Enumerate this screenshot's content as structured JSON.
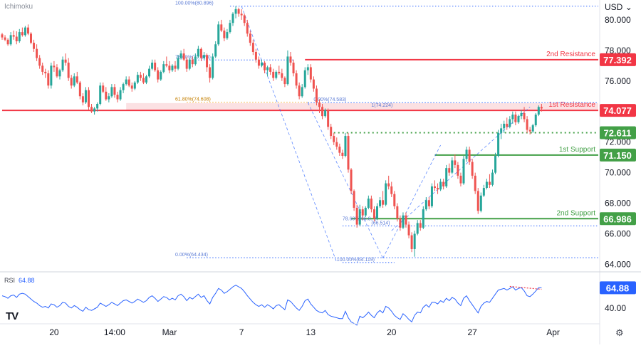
{
  "header": {
    "indicator_name": "Ichimoku",
    "currency": "USD",
    "currency_chevron": "⌄"
  },
  "rsi_panel": {
    "label": "RSI",
    "value": "64.88",
    "tick": "40.00"
  },
  "footer": {
    "logo": "TV",
    "settings_icon": "gear-icon",
    "settings_glyph": "⚙"
  },
  "colors": {
    "up": "#26a69a",
    "down": "#ef5350",
    "resistance": "#f23645",
    "support": "#43a047",
    "fib": "#2962ff",
    "rsi": "#2962ff",
    "rsi_trend": "#f23645",
    "zone": "#f7c9cc"
  },
  "chart_data": {
    "type": "candlestick",
    "y_axis": {
      "min": 63.6,
      "max": 81.3,
      "ticks": [
        80,
        78,
        76,
        74,
        72,
        70,
        68,
        66,
        64
      ],
      "tick_labels": [
        "80.000",
        "78.000",
        "76.000",
        "74.000",
        "72.000",
        "70.000",
        "68.000",
        "66.000",
        "64.000"
      ]
    },
    "x_axis": {
      "labels": [
        "20",
        "14:00",
        "Mar",
        "7",
        "13",
        "20",
        "27",
        "Apr"
      ],
      "label_bar_index": [
        18,
        39,
        58,
        83,
        107,
        135,
        163,
        191
      ]
    },
    "candle_count": 188,
    "candles": [
      [
        79.05,
        79.15,
        78.7,
        78.85
      ],
      [
        78.85,
        79.0,
        78.6,
        78.7
      ],
      [
        78.7,
        78.8,
        78.3,
        78.4
      ],
      [
        78.4,
        79.2,
        78.3,
        79.0
      ],
      [
        79.0,
        79.3,
        78.7,
        78.9
      ],
      [
        78.9,
        79.25,
        78.4,
        78.6
      ],
      [
        78.6,
        79.4,
        78.5,
        79.2
      ],
      [
        79.2,
        79.5,
        78.9,
        79.0
      ],
      [
        79.0,
        79.6,
        78.9,
        79.5
      ],
      [
        79.5,
        79.7,
        79.0,
        79.1
      ],
      [
        79.1,
        79.2,
        78.4,
        78.5
      ],
      [
        78.5,
        78.7,
        77.9,
        78.1
      ],
      [
        78.1,
        78.4,
        77.3,
        77.5
      ],
      [
        77.5,
        77.7,
        76.8,
        77.0
      ],
      [
        77.0,
        77.2,
        76.4,
        76.6
      ],
      [
        76.6,
        76.8,
        76.2,
        76.5
      ],
      [
        76.5,
        76.7,
        75.5,
        75.7
      ],
      [
        75.7,
        77.2,
        75.5,
        77.0
      ],
      [
        77.0,
        77.3,
        76.6,
        76.9
      ],
      [
        76.9,
        77.1,
        76.2,
        76.3
      ],
      [
        76.3,
        76.8,
        76.1,
        76.7
      ],
      [
        76.7,
        77.6,
        76.6,
        77.4
      ],
      [
        77.4,
        77.8,
        77.0,
        77.2
      ],
      [
        77.2,
        77.5,
        76.0,
        76.2
      ],
      [
        76.2,
        76.4,
        75.5,
        75.7
      ],
      [
        75.7,
        76.5,
        75.6,
        76.3
      ],
      [
        76.3,
        76.6,
        75.8,
        75.9
      ],
      [
        75.9,
        76.0,
        74.8,
        75.0
      ],
      [
        75.0,
        75.2,
        74.4,
        74.6
      ],
      [
        74.6,
        75.6,
        74.5,
        75.4
      ],
      [
        75.4,
        75.6,
        74.1,
        74.3
      ],
      [
        74.3,
        74.5,
        73.9,
        74.0
      ],
      [
        74.0,
        74.3,
        73.8,
        74.2
      ],
      [
        74.2,
        74.6,
        74.0,
        74.5
      ],
      [
        74.5,
        75.9,
        74.4,
        75.7
      ],
      [
        75.7,
        75.9,
        75.2,
        75.3
      ],
      [
        75.3,
        75.6,
        74.7,
        74.8
      ],
      [
        74.8,
        75.2,
        74.6,
        75.0
      ],
      [
        75.0,
        75.8,
        74.9,
        75.6
      ],
      [
        75.6,
        75.8,
        74.9,
        75.1
      ],
      [
        75.1,
        75.3,
        74.6,
        74.8
      ],
      [
        74.8,
        75.6,
        74.7,
        75.4
      ],
      [
        75.4,
        75.9,
        75.2,
        75.8
      ],
      [
        75.8,
        76.3,
        75.7,
        76.1
      ],
      [
        76.1,
        76.3,
        75.6,
        75.7
      ],
      [
        75.7,
        75.9,
        75.3,
        75.5
      ],
      [
        75.5,
        76.0,
        75.4,
        75.9
      ],
      [
        75.9,
        76.6,
        75.8,
        76.4
      ],
      [
        76.4,
        76.6,
        76.0,
        76.2
      ],
      [
        76.2,
        76.5,
        75.8,
        75.9
      ],
      [
        75.9,
        76.4,
        75.8,
        76.3
      ],
      [
        76.3,
        77.0,
        76.2,
        76.8
      ],
      [
        76.8,
        77.4,
        76.7,
        77.2
      ],
      [
        77.2,
        77.4,
        76.6,
        76.7
      ],
      [
        76.7,
        76.9,
        75.9,
        76.1
      ],
      [
        76.1,
        76.7,
        76.0,
        76.6
      ],
      [
        76.6,
        77.3,
        76.5,
        77.1
      ],
      [
        77.1,
        77.6,
        76.9,
        77.0
      ],
      [
        77.0,
        77.3,
        76.5,
        76.7
      ],
      [
        76.7,
        77.1,
        76.6,
        77.0
      ],
      [
        77.0,
        77.3,
        76.6,
        76.8
      ],
      [
        76.8,
        77.7,
        76.7,
        77.5
      ],
      [
        77.5,
        78.0,
        77.4,
        77.8
      ],
      [
        77.8,
        78.1,
        77.3,
        77.4
      ],
      [
        77.4,
        77.6,
        76.6,
        76.8
      ],
      [
        76.8,
        77.5,
        76.7,
        77.4
      ],
      [
        77.4,
        77.6,
        76.9,
        77.1
      ],
      [
        77.1,
        77.8,
        77.0,
        77.6
      ],
      [
        77.6,
        78.3,
        77.5,
        78.1
      ],
      [
        78.1,
        78.2,
        77.3,
        77.5
      ],
      [
        77.5,
        77.9,
        77.4,
        77.7
      ],
      [
        77.7,
        77.8,
        76.6,
        76.9
      ],
      [
        76.9,
        77.1,
        75.9,
        76.2
      ],
      [
        76.2,
        77.8,
        76.1,
        77.6
      ],
      [
        77.6,
        78.6,
        77.5,
        78.4
      ],
      [
        78.4,
        79.9,
        78.3,
        79.7
      ],
      [
        79.7,
        80.0,
        79.2,
        79.3
      ],
      [
        79.3,
        79.5,
        78.6,
        78.8
      ],
      [
        78.8,
        79.4,
        78.7,
        79.2
      ],
      [
        79.2,
        80.0,
        79.1,
        79.8
      ],
      [
        79.8,
        80.5,
        79.6,
        80.4
      ],
      [
        80.4,
        80.9,
        80.1,
        80.7
      ],
      [
        80.7,
        80.8,
        80.2,
        80.4
      ],
      [
        80.4,
        80.7,
        80.0,
        80.3
      ],
      [
        80.3,
        80.4,
        79.6,
        79.8
      ],
      [
        79.8,
        80.0,
        78.9,
        79.1
      ],
      [
        79.1,
        79.3,
        78.3,
        78.5
      ],
      [
        78.5,
        78.7,
        77.7,
        77.9
      ],
      [
        77.9,
        78.1,
        77.2,
        77.4
      ],
      [
        77.4,
        77.6,
        76.8,
        77.0
      ],
      [
        77.0,
        77.4,
        76.9,
        77.2
      ],
      [
        77.2,
        77.3,
        76.5,
        76.7
      ],
      [
        76.7,
        77.0,
        76.3,
        76.9
      ],
      [
        76.9,
        77.1,
        76.4,
        76.6
      ],
      [
        76.6,
        76.8,
        76.0,
        76.2
      ],
      [
        76.2,
        76.7,
        76.1,
        76.6
      ],
      [
        76.6,
        77.0,
        76.4,
        76.5
      ],
      [
        76.5,
        76.8,
        76.0,
        76.2
      ],
      [
        76.2,
        76.3,
        75.6,
        75.8
      ],
      [
        75.8,
        78.0,
        75.7,
        77.6
      ],
      [
        77.6,
        77.9,
        77.0,
        77.2
      ],
      [
        77.2,
        77.4,
        76.3,
        76.5
      ],
      [
        76.5,
        76.7,
        75.5,
        75.7
      ],
      [
        75.7,
        75.9,
        74.8,
        75.0
      ],
      [
        75.0,
        75.8,
        74.9,
        75.6
      ],
      [
        75.6,
        76.9,
        75.5,
        76.7
      ],
      [
        76.7,
        77.1,
        76.4,
        76.9
      ],
      [
        76.9,
        77.1,
        75.9,
        76.1
      ],
      [
        76.1,
        76.3,
        75.3,
        75.5
      ],
      [
        75.5,
        75.7,
        74.4,
        74.6
      ],
      [
        74.6,
        74.8,
        73.9,
        74.3
      ],
      [
        74.3,
        74.5,
        73.5,
        73.7
      ],
      [
        73.7,
        74.2,
        73.6,
        74.1
      ],
      [
        74.1,
        74.2,
        72.8,
        73.0
      ],
      [
        73.0,
        73.2,
        72.2,
        72.4
      ],
      [
        72.4,
        72.6,
        71.8,
        72.0
      ],
      [
        72.0,
        72.3,
        71.5,
        71.7
      ],
      [
        71.7,
        71.9,
        71.1,
        71.3
      ],
      [
        71.3,
        71.5,
        70.9,
        71.1
      ],
      [
        71.1,
        72.6,
        71.0,
        72.4
      ],
      [
        72.4,
        72.6,
        70.0,
        70.2
      ],
      [
        70.2,
        70.3,
        68.6,
        68.8
      ],
      [
        68.8,
        68.9,
        67.5,
        67.7
      ],
      [
        67.7,
        67.9,
        66.4,
        66.6
      ],
      [
        66.6,
        67.9,
        66.5,
        67.6
      ],
      [
        67.6,
        67.8,
        66.9,
        67.2
      ],
      [
        67.2,
        67.8,
        67.1,
        67.7
      ],
      [
        67.7,
        68.5,
        67.6,
        68.3
      ],
      [
        68.3,
        68.5,
        67.4,
        67.6
      ],
      [
        67.6,
        67.8,
        66.8,
        67.0
      ],
      [
        67.0,
        68.0,
        66.9,
        67.8
      ],
      [
        67.8,
        68.4,
        67.7,
        68.2
      ],
      [
        68.2,
        68.8,
        67.7,
        67.9
      ],
      [
        67.9,
        69.5,
        67.8,
        69.3
      ],
      [
        69.3,
        69.8,
        68.9,
        69.1
      ],
      [
        69.1,
        69.4,
        68.4,
        68.6
      ],
      [
        68.6,
        68.8,
        67.6,
        67.8
      ],
      [
        67.8,
        68.0,
        66.8,
        67.0
      ],
      [
        67.0,
        67.2,
        66.2,
        66.4
      ],
      [
        66.4,
        67.4,
        66.3,
        67.2
      ],
      [
        67.2,
        67.4,
        66.4,
        66.6
      ],
      [
        66.6,
        66.8,
        65.7,
        65.9
      ],
      [
        65.9,
        66.1,
        64.8,
        65.0
      ],
      [
        65.0,
        66.2,
        64.5,
        66.0
      ],
      [
        66.0,
        66.9,
        65.9,
        66.7
      ],
      [
        66.7,
        66.9,
        66.2,
        66.4
      ],
      [
        66.4,
        67.8,
        66.3,
        67.6
      ],
      [
        67.6,
        68.4,
        67.5,
        68.2
      ],
      [
        68.2,
        68.4,
        67.6,
        67.8
      ],
      [
        67.8,
        69.3,
        67.7,
        69.1
      ],
      [
        69.1,
        69.5,
        68.8,
        69.0
      ],
      [
        69.0,
        69.3,
        68.6,
        68.9
      ],
      [
        68.9,
        69.6,
        68.8,
        69.4
      ],
      [
        69.4,
        69.6,
        68.9,
        69.1
      ],
      [
        69.1,
        70.5,
        69.0,
        70.3
      ],
      [
        70.3,
        70.6,
        69.8,
        70.0
      ],
      [
        70.0,
        71.0,
        69.9,
        70.8
      ],
      [
        70.8,
        71.2,
        70.3,
        70.5
      ],
      [
        70.5,
        70.7,
        69.6,
        69.8
      ],
      [
        69.8,
        70.0,
        69.1,
        69.3
      ],
      [
        69.3,
        71.1,
        69.2,
        70.9
      ],
      [
        70.9,
        71.7,
        70.7,
        71.5
      ],
      [
        71.5,
        71.7,
        70.5,
        70.7
      ],
      [
        70.7,
        70.9,
        69.6,
        69.8
      ],
      [
        69.8,
        70.0,
        68.6,
        68.8
      ],
      [
        68.8,
        69.0,
        67.3,
        67.5
      ],
      [
        67.5,
        68.7,
        67.4,
        68.5
      ],
      [
        68.5,
        69.2,
        68.4,
        69.0
      ],
      [
        69.0,
        69.6,
        68.9,
        69.4
      ],
      [
        69.4,
        69.9,
        69.0,
        69.2
      ],
      [
        69.2,
        70.2,
        69.1,
        70.0
      ],
      [
        70.0,
        71.3,
        69.9,
        71.1
      ],
      [
        71.1,
        72.8,
        71.0,
        72.6
      ],
      [
        72.6,
        73.2,
        72.2,
        72.9
      ],
      [
        72.9,
        73.4,
        72.6,
        73.2
      ],
      [
        73.2,
        73.6,
        72.8,
        73.0
      ],
      [
        73.0,
        73.7,
        72.9,
        73.5
      ],
      [
        73.5,
        74.0,
        73.2,
        73.8
      ],
      [
        73.8,
        74.0,
        73.1,
        73.3
      ],
      [
        73.3,
        73.8,
        73.2,
        73.7
      ],
      [
        73.7,
        74.1,
        73.5,
        73.9
      ],
      [
        73.9,
        74.3,
        73.3,
        73.5
      ],
      [
        73.5,
        73.7,
        72.6,
        72.8
      ],
      [
        72.8,
        73.0,
        72.5,
        72.7
      ],
      [
        72.7,
        73.2,
        72.6,
        73.1
      ],
      [
        73.1,
        73.9,
        73.0,
        73.8
      ],
      [
        73.8,
        74.4,
        73.7,
        74.3
      ],
      [
        74.3,
        74.5,
        74.0,
        74.2
      ]
    ],
    "levels": [
      {
        "name": "2nd Resistance",
        "label": "2nd Resistance",
        "value": 77.392,
        "price_tag": "77.392",
        "kind": "resistance"
      },
      {
        "name": "1st Resistance",
        "label": "1st Resistance",
        "value": 74.077,
        "price_tag": "74.077",
        "kind": "resistance"
      },
      {
        "name": "pivot",
        "label": "",
        "value": 72.611,
        "price_tag": "72.611",
        "kind": "pivot"
      },
      {
        "name": "1st Support",
        "label": "1st Support",
        "value": 71.15,
        "price_tag": "71.150",
        "kind": "support"
      },
      {
        "name": "2nd Support",
        "label": "2nd Support",
        "value": 66.986,
        "price_tag": "66.986",
        "kind": "support"
      }
    ],
    "fib_labels": [
      {
        "text": "100.00%(80.896)",
        "value": 80.896,
        "bar": 60
      },
      {
        "text": "78.60%(77.373)",
        "value": 77.373,
        "bar": 60
      },
      {
        "text": "61.80%(74.608)",
        "value": 74.608,
        "bar": 60
      },
      {
        "text": "0.00%(64.434)",
        "value": 64.434,
        "bar": 60
      },
      {
        "text": "0.00%(74.583)",
        "value": 74.583,
        "bar": 108
      },
      {
        "text": "1(74.224)",
        "value": 74.224,
        "bar": 128
      },
      {
        "text": "78.60%(66.8...)",
        "value": 66.8,
        "bar": 118
      },
      {
        "text": "(66.514)",
        "value": 66.514,
        "bar": 128
      },
      {
        "text": "100.00%(64.119)",
        "value": 64.119,
        "bar": 116
      }
    ],
    "rsi": {
      "values": [
        55,
        54,
        52,
        55,
        56,
        53,
        57,
        58,
        57,
        54,
        51,
        48,
        46,
        43,
        41,
        42,
        40,
        45,
        44,
        41,
        43,
        47,
        46,
        42,
        40,
        43,
        41,
        38,
        36,
        41,
        38,
        37,
        39,
        41,
        46,
        44,
        42,
        44,
        47,
        45,
        43,
        46,
        49,
        50,
        48,
        46,
        48,
        51,
        49,
        47,
        49,
        53,
        55,
        52,
        48,
        51,
        54,
        53,
        50,
        52,
        50,
        55,
        57,
        54,
        49,
        53,
        51,
        54,
        57,
        53,
        55,
        49,
        45,
        53,
        58,
        64,
        62,
        58,
        60,
        63,
        66,
        68,
        66,
        64,
        60,
        55,
        51,
        47,
        44,
        42,
        44,
        41,
        44,
        42,
        39,
        43,
        44,
        41,
        38,
        50,
        48,
        44,
        40,
        37,
        42,
        49,
        51,
        45,
        41,
        37,
        35,
        34,
        37,
        32,
        30,
        29,
        28,
        27,
        27,
        36,
        28,
        23,
        21,
        19,
        30,
        28,
        31,
        35,
        31,
        28,
        34,
        37,
        34,
        42,
        40,
        36,
        31,
        28,
        26,
        33,
        30,
        26,
        23,
        31,
        35,
        34,
        41,
        44,
        41,
        47,
        47,
        45,
        49,
        47,
        52,
        49,
        53,
        51,
        46,
        43,
        52,
        55,
        49,
        44,
        39,
        34,
        42,
        46,
        48,
        47,
        52,
        57,
        62,
        63,
        64,
        62,
        64,
        66,
        62,
        64,
        65,
        61,
        55,
        54,
        57,
        61,
        65,
        64.88
      ]
    }
  }
}
